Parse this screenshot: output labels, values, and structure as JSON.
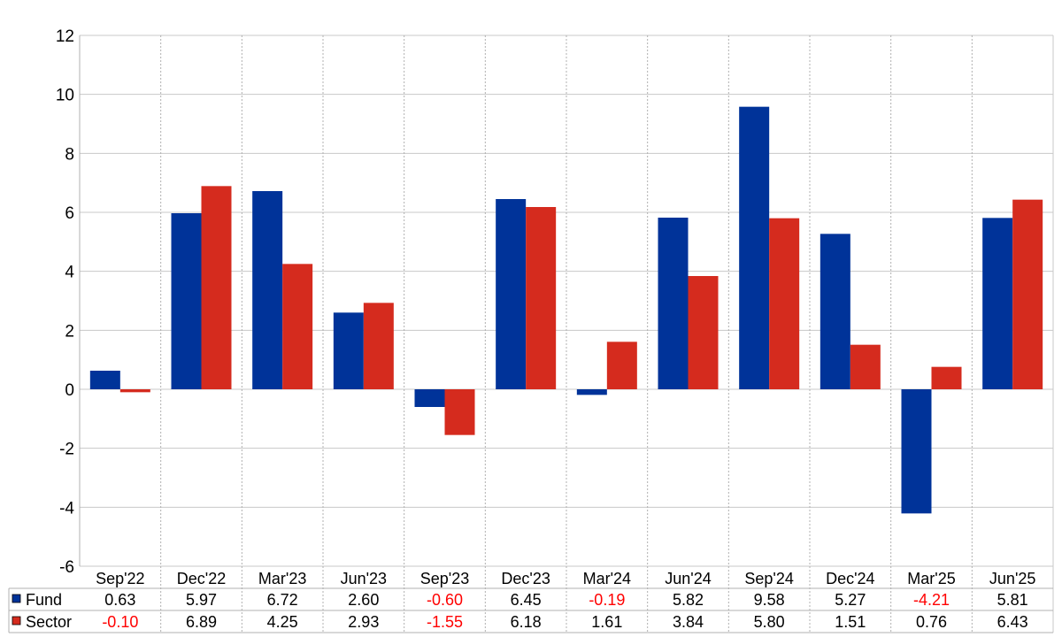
{
  "chart_data": {
    "type": "bar",
    "categories": [
      "Sep'22",
      "Dec'22",
      "Mar'23",
      "Jun'23",
      "Sep'23",
      "Dec'23",
      "Mar'24",
      "Jun'24",
      "Sep'24",
      "Dec'24",
      "Mar'25",
      "Jun'25"
    ],
    "series": [
      {
        "name": "Fund",
        "color": "#003399",
        "values": [
          0.63,
          5.97,
          6.72,
          2.6,
          -0.6,
          6.45,
          -0.19,
          5.82,
          9.58,
          5.27,
          -4.21,
          5.81
        ],
        "labels": [
          "0.63",
          "5.97",
          "6.72",
          "2.60",
          "-0.60",
          "6.45",
          "-0.19",
          "5.82",
          "9.58",
          "5.27",
          "-4.21",
          "5.81"
        ]
      },
      {
        "name": "Sector",
        "color": "#d52b1e",
        "values": [
          -0.1,
          6.89,
          4.25,
          2.93,
          -1.55,
          6.18,
          1.61,
          3.84,
          5.8,
          1.51,
          0.76,
          6.43
        ],
        "labels": [
          "-0.10",
          "6.89",
          "4.25",
          "2.93",
          "-1.55",
          "6.18",
          "1.61",
          "3.84",
          "5.80",
          "1.51",
          "0.76",
          "6.43"
        ]
      }
    ],
    "ylim": [
      -6,
      12
    ],
    "yticks": [
      "12",
      "10",
      "8",
      "6",
      "4",
      "2",
      "0",
      "-2",
      "-4",
      "-6"
    ],
    "ytick_values": [
      12,
      10,
      8,
      6,
      4,
      2,
      0,
      -2,
      -4,
      -6
    ],
    "grid": true,
    "legend": "data-table-left",
    "negative_value_color": "#ff0000",
    "title": "",
    "xlabel": "",
    "ylabel": ""
  }
}
